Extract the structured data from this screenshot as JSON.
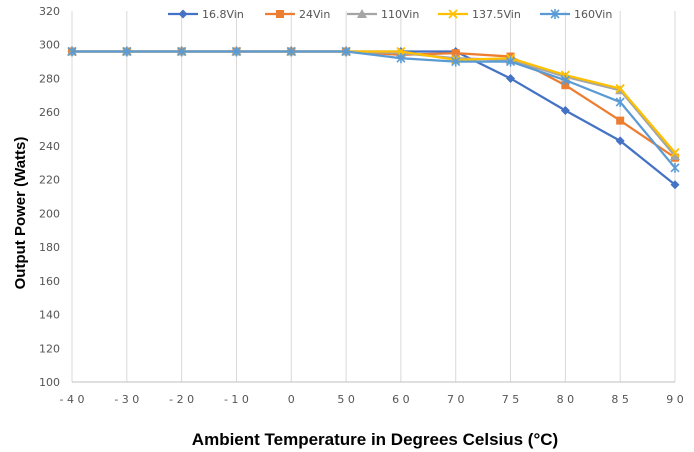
{
  "chart_data": {
    "type": "line",
    "categories": [
      "-40",
      "-30",
      "-20",
      "-10",
      "0",
      "50",
      "60",
      "70",
      "75",
      "80",
      "85",
      "90"
    ],
    "xlabel": "Ambient Temperature in Degrees Celsius (°C)",
    "ylabel": "Output Power (Watts)",
    "ylim": [
      100,
      320
    ],
    "yticks": [
      100,
      120,
      140,
      160,
      180,
      200,
      220,
      240,
      260,
      280,
      300,
      320
    ],
    "grid": "vertical",
    "legend_position": "top",
    "series": [
      {
        "name": "16.8Vin",
        "color": "#4472C4",
        "marker": "diamond",
        "values": [
          296,
          296,
          296,
          296,
          296,
          296,
          296,
          296,
          280,
          261,
          243,
          217
        ]
      },
      {
        "name": "24Vin",
        "color": "#ED7D31",
        "marker": "square",
        "values": [
          296,
          296,
          296,
          296,
          296,
          296,
          294,
          295,
          293,
          276,
          255,
          233
        ]
      },
      {
        "name": "110Vin",
        "color": "#A5A5A5",
        "marker": "triangle",
        "values": [
          296,
          296,
          296,
          296,
          296,
          296,
          295,
          292,
          291,
          281,
          273,
          234
        ]
      },
      {
        "name": "137.5Vin",
        "color": "#FFC000",
        "marker": "x",
        "values": [
          296,
          296,
          296,
          296,
          296,
          296,
          296,
          291,
          292,
          282,
          274,
          236
        ]
      },
      {
        "name": "160Vin",
        "color": "#5B9BD5",
        "marker": "asterisk",
        "values": [
          296,
          296,
          296,
          296,
          296,
          296,
          292,
          290,
          290,
          279,
          266,
          227
        ]
      }
    ]
  }
}
